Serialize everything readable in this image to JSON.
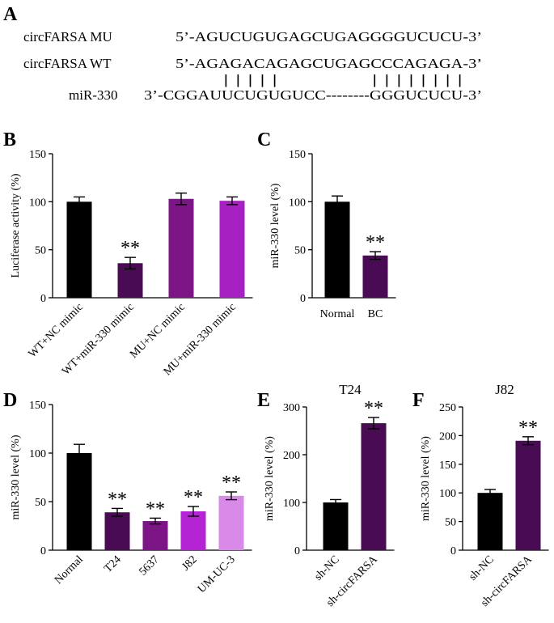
{
  "panels": {
    "A": "A",
    "B": "B",
    "C": "C",
    "D": "D",
    "E": "E",
    "F": "F"
  },
  "sequence_panel": {
    "rows": [
      {
        "label": "circFARSA MU",
        "seq": "5’-AGUCUGUGAGCUGAGGGGUCUCU-3’"
      },
      {
        "label": "circFARSA WT",
        "seq": "5’-AGAGACAGAGCUGAGCCCAGAGA-3’"
      },
      {
        "label": "miR-330",
        "seq": "3’-CGGAUUCUGUGUCC--------GGGUCUCU-3’"
      }
    ],
    "pairing_marks": "| | | | |              | | | | | | | |"
  },
  "chart_data": [
    {
      "id": "B",
      "type": "bar",
      "title": "",
      "ylabel": "Luciferase activity (%)",
      "xlabel": "",
      "ylim": [
        0,
        150
      ],
      "yticks": [
        0,
        50,
        100,
        150
      ],
      "categories": [
        "WT+NC mimic",
        "WT+miR-330 mimic",
        "MU+NC mimic",
        "MU+miR-330 mimic"
      ],
      "values": [
        100,
        36,
        103,
        101
      ],
      "errors": [
        5,
        6,
        6,
        4
      ],
      "colors": [
        "#000000",
        "#4a0b55",
        "#7c1687",
        "#a620c2"
      ],
      "significance": [
        "",
        "**",
        "",
        ""
      ]
    },
    {
      "id": "C",
      "type": "bar",
      "title": "",
      "ylabel": "miR-330 level (%)",
      "xlabel": "",
      "ylim": [
        0,
        150
      ],
      "yticks": [
        0,
        50,
        100,
        150
      ],
      "categories": [
        "Normal",
        "BC"
      ],
      "values": [
        100,
        44
      ],
      "errors": [
        6,
        4
      ],
      "colors": [
        "#000000",
        "#4a0b55"
      ],
      "significance": [
        "",
        "**"
      ]
    },
    {
      "id": "D",
      "type": "bar",
      "title": "",
      "ylabel": "miR-330 level (%)",
      "xlabel": "",
      "ylim": [
        0,
        150
      ],
      "yticks": [
        0,
        50,
        100,
        150
      ],
      "categories": [
        "Normal",
        "T24",
        "5637",
        "J82",
        "UM-UC-3"
      ],
      "values": [
        100,
        39,
        30,
        40,
        56
      ],
      "errors": [
        9,
        4,
        3,
        5,
        4
      ],
      "colors": [
        "#000000",
        "#4a0b55",
        "#7c1687",
        "#b423d4",
        "#d98ae8"
      ],
      "significance": [
        "",
        "**",
        "**",
        "**",
        "**"
      ]
    },
    {
      "id": "E",
      "type": "bar",
      "title": "T24",
      "ylabel": "miR-330 level (%)",
      "xlabel": "",
      "ylim": [
        0,
        300
      ],
      "yticks": [
        0,
        100,
        200,
        300
      ],
      "categories": [
        "sh-NC",
        "sh-circFARSA"
      ],
      "values": [
        100,
        266
      ],
      "errors": [
        6,
        12
      ],
      "colors": [
        "#000000",
        "#4a0b55"
      ],
      "significance": [
        "",
        "**"
      ]
    },
    {
      "id": "F",
      "type": "bar",
      "title": "J82",
      "ylabel": "miR-330 level (%)",
      "xlabel": "",
      "ylim": [
        0,
        250
      ],
      "yticks": [
        0,
        50,
        100,
        150,
        200,
        250
      ],
      "categories": [
        "sh-NC",
        "sh-circFARSA"
      ],
      "values": [
        100,
        191
      ],
      "errors": [
        6,
        7
      ],
      "colors": [
        "#000000",
        "#4a0b55"
      ],
      "significance": [
        "",
        "**"
      ]
    }
  ]
}
